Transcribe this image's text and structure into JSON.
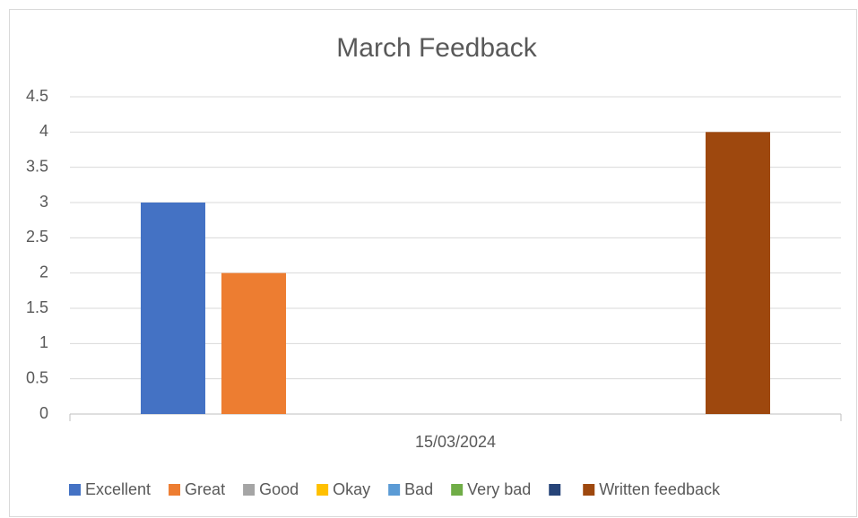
{
  "chart_data": {
    "type": "bar",
    "title": "March Feedback",
    "categories": [
      "15/03/2024"
    ],
    "series": [
      {
        "name": "Excellent",
        "color": "#4472c4",
        "values": [
          3
        ]
      },
      {
        "name": "Great",
        "color": "#ed7d31",
        "values": [
          2
        ]
      },
      {
        "name": "Good",
        "color": "#a5a5a5",
        "values": [
          0
        ]
      },
      {
        "name": "Okay",
        "color": "#ffc000",
        "values": [
          0
        ]
      },
      {
        "name": "Bad",
        "color": "#5b9bd5",
        "values": [
          0
        ]
      },
      {
        "name": "Very bad",
        "color": "#70ad47",
        "values": [
          0
        ]
      },
      {
        "name": null,
        "color": "#264478",
        "values": [
          0
        ]
      },
      {
        "name": "Written feedback",
        "color": "#9e480e",
        "values": [
          4
        ]
      }
    ],
    "ylim": [
      0,
      4.5
    ],
    "yticks": [
      0,
      0.5,
      1,
      1.5,
      2,
      2.5,
      3,
      3.5,
      4,
      4.5
    ],
    "grid": true,
    "legend": "bottom"
  }
}
